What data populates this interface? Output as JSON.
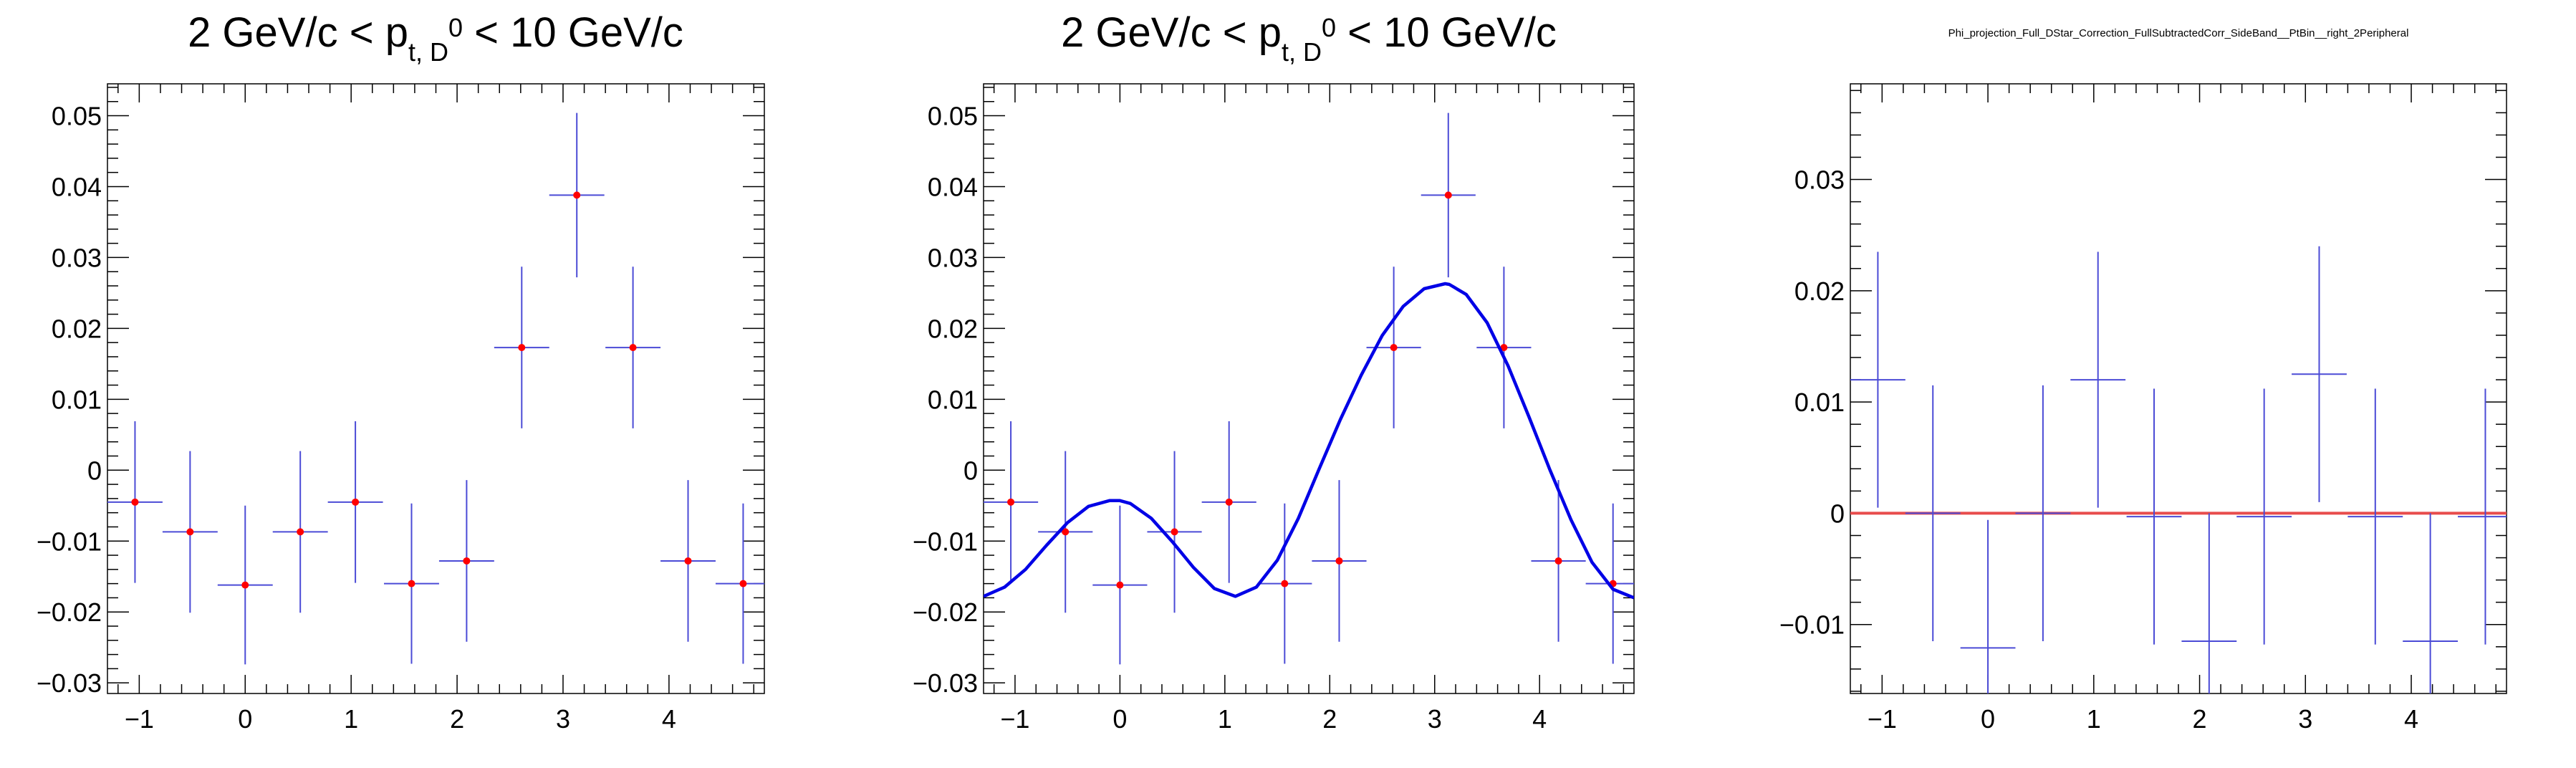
{
  "chart_data": [
    {
      "type": "scatter",
      "title": {
        "pre": "2 GeV/c < p",
        "sub": "t, D",
        "sup": "0",
        "post": " < 10 GeV/c"
      },
      "xlim": [
        -1.3,
        4.9
      ],
      "ylim": [
        -0.0315,
        0.0545
      ],
      "xticks": [
        -1,
        0,
        1,
        2,
        3,
        4
      ],
      "xtick_labels": [
        "−1",
        "0",
        "1",
        "2",
        "3",
        "4"
      ],
      "yticks": [
        -0.03,
        -0.02,
        -0.01,
        0,
        0.01,
        0.02,
        0.03,
        0.04,
        0.05
      ],
      "ytick_labels": [
        "−0.03",
        "−0.02",
        "−0.01",
        "0",
        "0.01",
        "0.02",
        "0.03",
        "0.04",
        "0.05"
      ],
      "bin_half_width": 0.26,
      "x": [
        -1.04,
        -0.52,
        0.0,
        0.52,
        1.04,
        1.57,
        2.09,
        2.61,
        3.13,
        3.66,
        4.18,
        4.7
      ],
      "y": [
        -0.0045,
        -0.0087,
        -0.0162,
        -0.0087,
        -0.0045,
        -0.016,
        -0.0128,
        0.0173,
        0.0388,
        0.0173,
        -0.0128,
        -0.016
      ],
      "yerr": [
        0.0114,
        0.0114,
        0.0112,
        0.0114,
        0.0114,
        0.0113,
        0.0114,
        0.0114,
        0.0116,
        0.0114,
        0.0114,
        0.0113
      ],
      "point_color": "#ff0000",
      "error_color": "#4b4bd6"
    },
    {
      "type": "scatter",
      "title": {
        "pre": "2 GeV/c < p",
        "sub": "t, D",
        "sup": "0",
        "post": " < 10 GeV/c"
      },
      "xlim": [
        -1.3,
        4.9
      ],
      "ylim": [
        -0.0315,
        0.0545
      ],
      "xticks": [
        -1,
        0,
        1,
        2,
        3,
        4
      ],
      "xtick_labels": [
        "−1",
        "0",
        "1",
        "2",
        "3",
        "4"
      ],
      "yticks": [
        -0.03,
        -0.02,
        -0.01,
        0,
        0.01,
        0.02,
        0.03,
        0.04,
        0.05
      ],
      "ytick_labels": [
        "−0.03",
        "−0.02",
        "−0.01",
        "0",
        "0.01",
        "0.02",
        "0.03",
        "0.04",
        "0.05"
      ],
      "bin_half_width": 0.26,
      "x": [
        -1.04,
        -0.52,
        0.0,
        0.52,
        1.04,
        1.57,
        2.09,
        2.61,
        3.13,
        3.66,
        4.18,
        4.7
      ],
      "y": [
        -0.0045,
        -0.0087,
        -0.0162,
        -0.0087,
        -0.0045,
        -0.016,
        -0.0128,
        0.0173,
        0.0388,
        0.0173,
        -0.0128,
        -0.016
      ],
      "yerr": [
        0.0114,
        0.0114,
        0.0112,
        0.0114,
        0.0114,
        0.0113,
        0.0114,
        0.0114,
        0.0116,
        0.0114,
        0.0114,
        0.0113
      ],
      "point_color": "#ff0000",
      "error_color": "#4b4bd6",
      "fit": {
        "color": "#0000e6",
        "x": [
          -1.3,
          -1.1,
          -0.9,
          -0.7,
          -0.5,
          -0.3,
          -0.1,
          0.0,
          0.1,
          0.3,
          0.5,
          0.7,
          0.9,
          1.1,
          1.3,
          1.5,
          1.7,
          1.9,
          2.1,
          2.3,
          2.5,
          2.7,
          2.9,
          3.1,
          3.14,
          3.3,
          3.5,
          3.7,
          3.9,
          4.1,
          4.3,
          4.5,
          4.7,
          4.9
        ],
        "y": [
          -0.0178,
          -0.0165,
          -0.014,
          -0.0106,
          -0.0074,
          -0.0051,
          -0.0043,
          -0.0043,
          -0.0047,
          -0.0068,
          -0.0101,
          -0.0137,
          -0.0167,
          -0.0178,
          -0.0165,
          -0.0127,
          -0.0068,
          0.0002,
          0.0071,
          0.0134,
          0.019,
          0.0231,
          0.0256,
          0.0263,
          0.0262,
          0.0248,
          0.0208,
          0.0147,
          0.0075,
          0.0,
          -0.007,
          -0.013,
          -0.0168,
          -0.018
        ]
      }
    },
    {
      "type": "scatter",
      "title": "Phi_projection_Full_DStar_Correction_FullSubtractedCorr_SideBand__PtBin__right_2Peripheral",
      "xlim": [
        -1.3,
        4.9
      ],
      "ylim": [
        -0.0162,
        0.0386
      ],
      "xticks": [
        -1,
        0,
        1,
        2,
        3,
        4
      ],
      "xtick_labels": [
        "−1",
        "0",
        "1",
        "2",
        "3",
        "4"
      ],
      "yticks": [
        -0.01,
        0,
        0.01,
        0.02,
        0.03
      ],
      "ytick_labels": [
        "−0.01",
        "0",
        "0.01",
        "0.02",
        "0.03"
      ],
      "bin_half_width": 0.26,
      "x": [
        -1.04,
        -0.52,
        0.0,
        0.52,
        1.04,
        1.57,
        2.09,
        2.61,
        3.13,
        3.66,
        4.18,
        4.7
      ],
      "y": [
        0.012,
        0.0,
        -0.0121,
        0.0,
        0.012,
        -0.0003,
        -0.0115,
        -0.0003,
        0.0125,
        -0.0003,
        -0.0115,
        -0.0003
      ],
      "yerr": [
        0.0115,
        0.0115,
        0.0115,
        0.0115,
        0.0115,
        0.0115,
        0.0115,
        0.0115,
        0.0115,
        0.0115,
        0.0115,
        0.0115
      ],
      "show_points": false,
      "error_color": "#4b4bd6",
      "hline": {
        "y": 0,
        "color": "#e84c4c"
      }
    }
  ]
}
